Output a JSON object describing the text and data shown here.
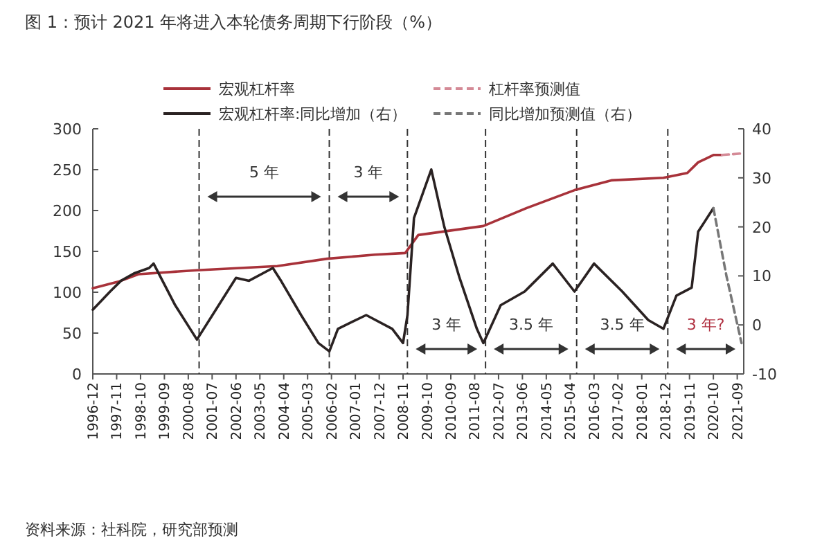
{
  "chart_data": {
    "type": "line",
    "title": "图 1：预计 2021 年将进入本轮债务周期下行阶段（%）",
    "xlim": [
      "1996-12",
      "2021-12"
    ],
    "xticks": [
      "1996-12",
      "1997-11",
      "1998-10",
      "1999-09",
      "2000-08",
      "2001-07",
      "2002-06",
      "2003-05",
      "2004-04",
      "2005-03",
      "2006-02",
      "2007-01",
      "2007-12",
      "2008-11",
      "2009-10",
      "2010-09",
      "2011-08",
      "2012-07",
      "2013-06",
      "2014-05",
      "2015-04",
      "2016-03",
      "2017-02",
      "2018-01",
      "2018-12",
      "2019-11",
      "2020-10",
      "2021-09"
    ],
    "ylim": [
      0,
      300
    ],
    "yticks": [
      0,
      50,
      100,
      150,
      200,
      250,
      300
    ],
    "y2lim": [
      -10,
      40
    ],
    "y2ticks": [
      -10,
      0,
      10,
      20,
      30,
      40
    ],
    "legend": "top",
    "grid": false,
    "series": [
      {
        "name": "宏观杠杆率",
        "color": "#a8323a",
        "line_style": "solid",
        "x": [
          "1996-12",
          "1997-12",
          "1998-09",
          "2000-12",
          "2004-01",
          "2005-12",
          "2007-10",
          "2008-12",
          "2009-06",
          "2011-12",
          "2013-08",
          "2015-06",
          "2016-11",
          "2018-11",
          "2019-10",
          "2020-03",
          "2020-10",
          "2021-02"
        ],
        "values": [
          105,
          113,
          122,
          127,
          132,
          141,
          146,
          148,
          170,
          181,
          203,
          225,
          237,
          240,
          246,
          259,
          268,
          268
        ]
      },
      {
        "name": "杠杆率预测值",
        "color": "#d48a96",
        "line_style": "dashed",
        "x": [
          "2021-02",
          "2021-12"
        ],
        "values": [
          268,
          270
        ]
      },
      {
        "name": "宏观杠杆率:同比增加（右）",
        "color": "#2a2222",
        "line_style": "solid",
        "axis": "y2",
        "x": [
          "1996-12",
          "1997-08",
          "1998-01",
          "1998-07",
          "1999-02",
          "1999-04",
          "2000-02",
          "2000-12",
          "2001-10",
          "2002-06",
          "2002-12",
          "2003-11",
          "2004-03",
          "2004-12",
          "2005-08",
          "2006-01",
          "2006-05",
          "2007-06",
          "2008-06",
          "2008-11",
          "2009-01",
          "2009-04",
          "2009-12",
          "2010-06",
          "2011-01",
          "2011-09",
          "2011-12",
          "2012-08",
          "2013-07",
          "2014-08",
          "2015-06",
          "2016-03",
          "2017-04",
          "2018-04",
          "2018-11",
          "2019-05",
          "2019-12",
          "2020-03",
          "2020-10"
        ],
        "values": [
          3.1,
          6.8,
          9,
          10.5,
          11.6,
          12.5,
          4,
          -3,
          4,
          9.6,
          9,
          11.6,
          8.8,
          2,
          -3.7,
          -5.4,
          -0.8,
          2,
          -0.8,
          -3.7,
          2,
          21.8,
          31.7,
          20,
          9.6,
          -0.8,
          -3.7,
          4,
          6.8,
          12.5,
          6.8,
          12.5,
          6.8,
          1,
          -0.8,
          6,
          7.6,
          19,
          23.8
        ]
      },
      {
        "name": "同比增加预测值（右）",
        "color": "#777777",
        "line_style": "dashed",
        "axis": "y2",
        "x": [
          "2020-10",
          "2021-04",
          "2021-11"
        ],
        "values": [
          23.8,
          10,
          -3.7
        ]
      }
    ],
    "ref_lines": [
      {
        "axis": "x",
        "value": "2001-01",
        "color": "#333333",
        "line_style": "dashed"
      },
      {
        "axis": "x",
        "value": "2006-01",
        "color": "#333333",
        "line_style": "dashed"
      },
      {
        "axis": "x",
        "value": "2009-01",
        "color": "#333333",
        "line_style": "dashed"
      },
      {
        "axis": "x",
        "value": "2012-01",
        "color": "#333333",
        "line_style": "dashed"
      },
      {
        "axis": "x",
        "value": "2015-07",
        "color": "#333333",
        "line_style": "dashed"
      },
      {
        "axis": "x",
        "value": "2019-01",
        "color": "#333333",
        "line_style": "dashed"
      }
    ],
    "annotations": [
      "5 年",
      "3 年",
      "3 年",
      "3.5 年",
      "3.5 年",
      "3 年?",
      "资料来源：社科院，研究部预测"
    ]
  }
}
